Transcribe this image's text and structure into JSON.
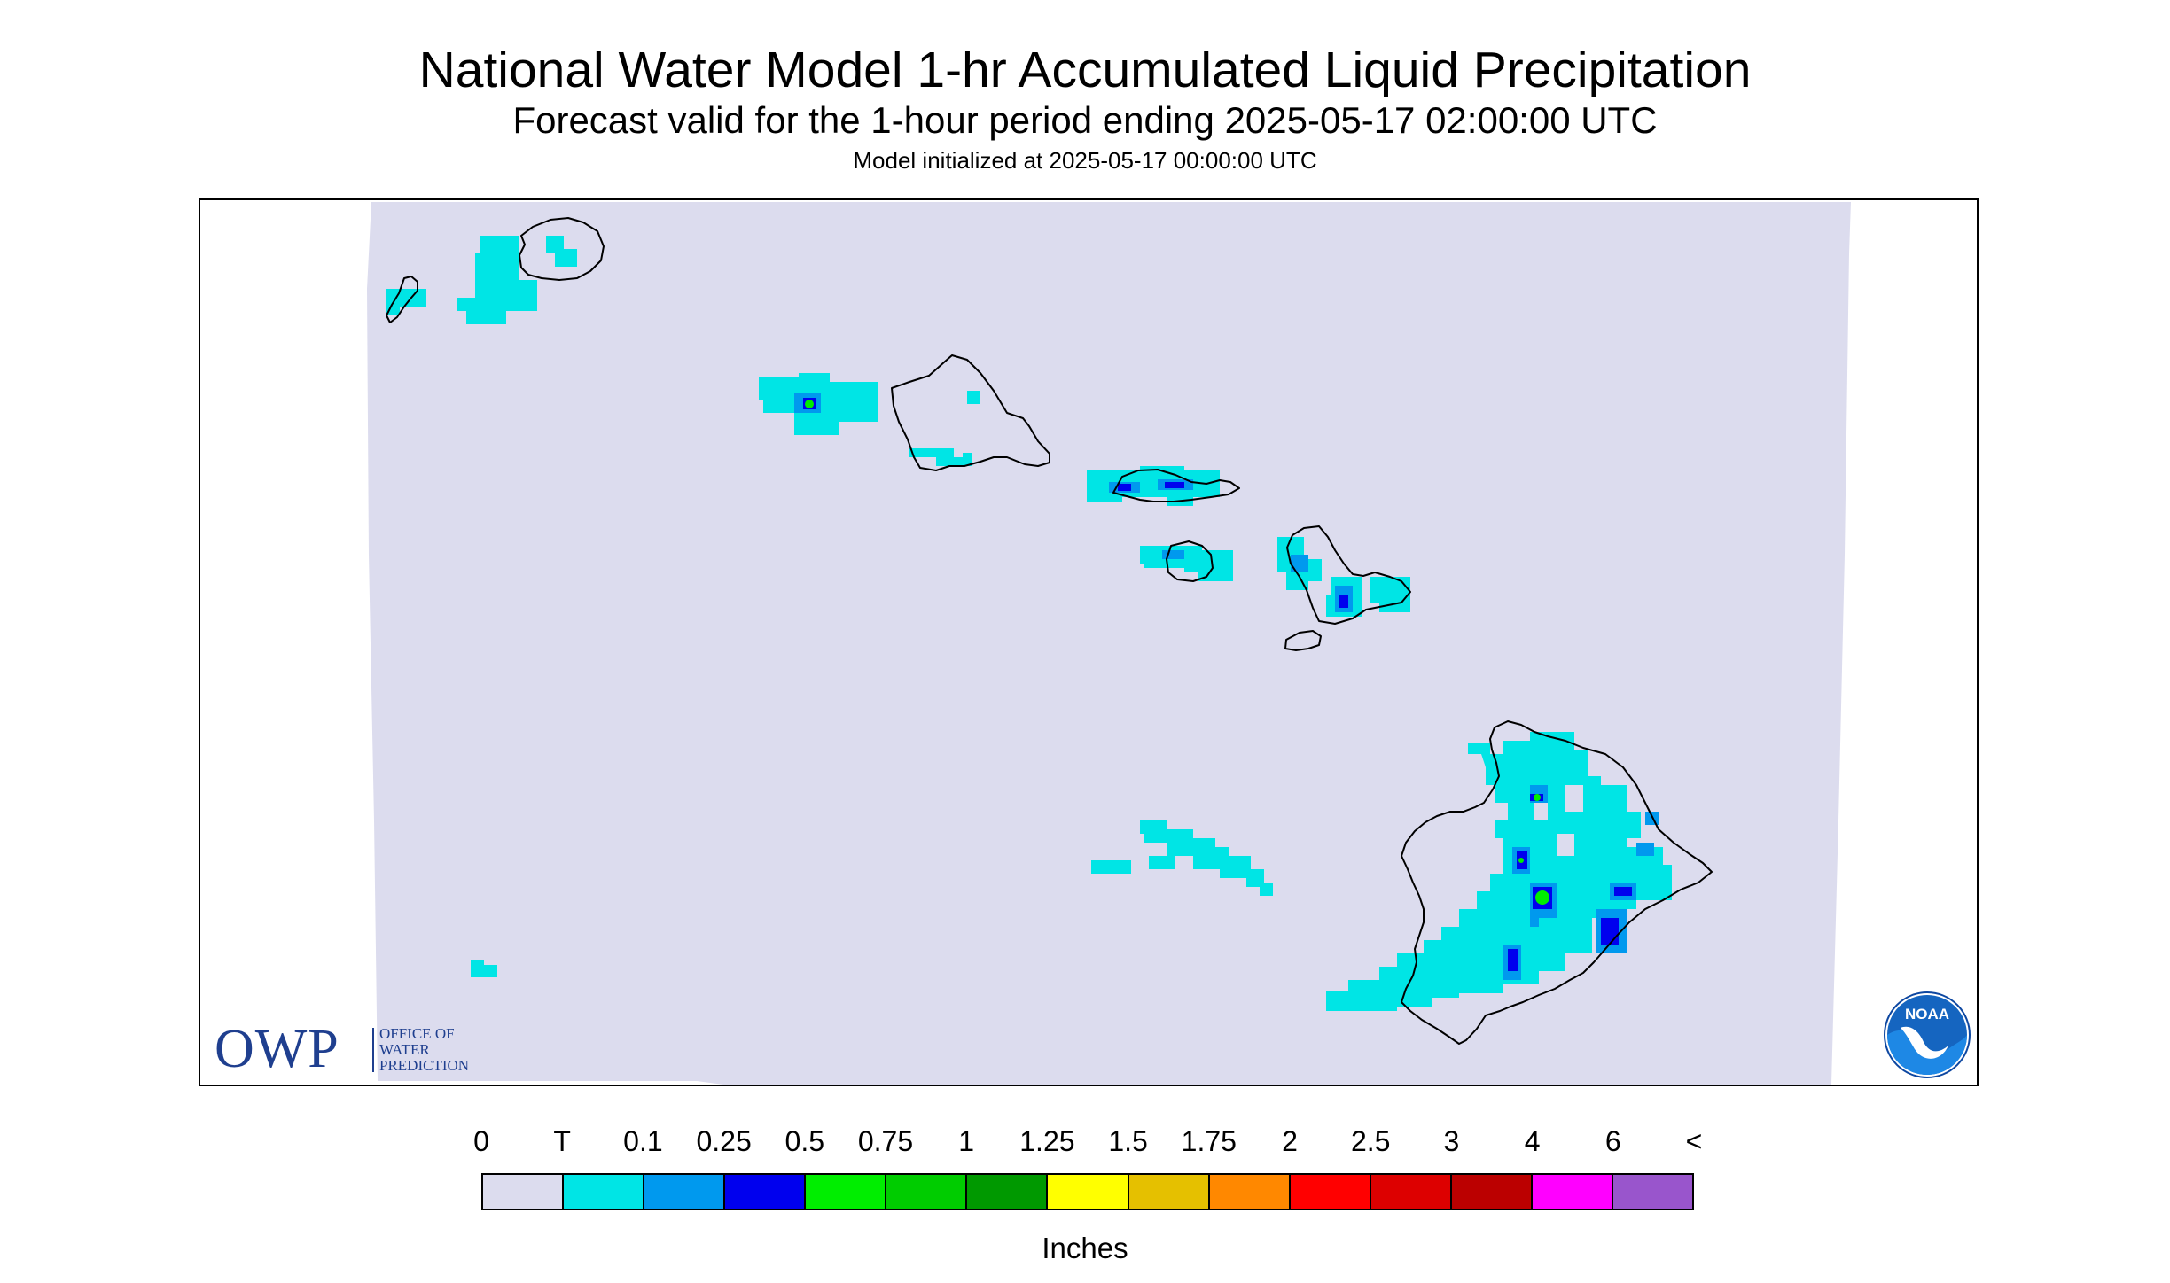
{
  "header": {
    "title": "National Water Model 1-hr Accumulated Liquid Precipitation",
    "subtitle": "Forecast valid for the 1-hour period ending 2025-05-17 02:00:00 UTC",
    "init": "Model initialized at 2025-05-17 00:00:00 UTC"
  },
  "map": {
    "background_color": "#dcdcee",
    "coastline_color": "#000000"
  },
  "logos": {
    "owp_big": "OWP",
    "owp_line1": "OFFICE OF",
    "owp_line2": "WATER",
    "owp_line3": "PREDICTION",
    "noaa_text": "NOAA",
    "noaa_colors": [
      "#1565c0",
      "#ffffff"
    ]
  },
  "legend": {
    "labels": [
      "0",
      "T",
      "0.1",
      "0.25",
      "0.5",
      "0.75",
      "1",
      "1.25",
      "1.5",
      "1.75",
      "2",
      "2.5",
      "3",
      "4",
      "6",
      "<"
    ],
    "colors": [
      "#dcdcee",
      "#00e5e5",
      "#0099ee",
      "#0000ee",
      "#00ee00",
      "#00cc00",
      "#009900",
      "#ffff00",
      "#e5c000",
      "#ff8800",
      "#ff0000",
      "#dd0000",
      "#bb0000",
      "#ff00ff",
      "#9955cc"
    ],
    "units": "Inches"
  }
}
